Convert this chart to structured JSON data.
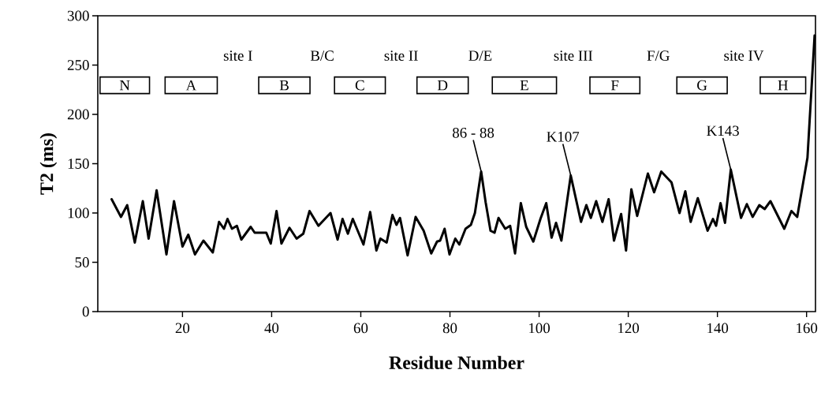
{
  "chart_data": {
    "type": "line",
    "xlabel": "Residue Number",
    "ylabel": "T2 (ms)",
    "color": "#000000",
    "x": [
      4.1,
      6.2,
      7.6,
      9.3,
      11.1,
      12.4,
      14.2,
      16.4,
      18.1,
      20,
      21.3,
      22.8,
      24.7,
      26.8,
      28.2,
      29.3,
      30.1,
      31.1,
      32.2,
      33.2,
      35.3,
      36.2,
      38.8,
      39.8,
      41.1,
      42.2,
      44,
      45.6,
      47.1,
      48.5,
      50.5,
      53.2,
      54.8,
      55.9,
      57.1,
      58.2,
      60.6,
      62.1,
      63.5,
      64.4,
      65.8,
      67.1,
      68,
      68.8,
      70.5,
      72.3,
      74.1,
      75.8,
      77.1,
      77.8,
      78.8,
      79.9,
      81.2,
      82.1,
      83.5,
      84.7,
      85.6,
      87,
      88,
      89.1,
      90,
      90.9,
      92.4,
      93.5,
      94.6,
      95.9,
      97.1,
      98.7,
      100.3,
      101.6,
      102.8,
      103.8,
      105,
      107.1,
      109.4,
      110.6,
      111.6,
      112.8,
      114.2,
      115.6,
      116.8,
      118.4,
      119.5,
      120.7,
      122,
      124.4,
      125.8,
      127.4,
      129.7,
      131.5,
      132.8,
      134,
      135.6,
      137.8,
      139,
      139.7,
      140.7,
      141.7,
      143,
      145.3,
      146.6,
      147.9,
      149.4,
      150.6,
      151.9,
      155,
      156.6,
      157.9,
      160.2,
      161.8
    ],
    "values": [
      114,
      96,
      108,
      70,
      112,
      74,
      123,
      58,
      112,
      66,
      78,
      58,
      72,
      60,
      91,
      84,
      94,
      84,
      87,
      73,
      86,
      80,
      80,
      69,
      102,
      69,
      85,
      74,
      79,
      102,
      87,
      100,
      73,
      94,
      79,
      94,
      68,
      101,
      62,
      74,
      70,
      98,
      88,
      95,
      57,
      96,
      82,
      59,
      71,
      72,
      84,
      58,
      74,
      68,
      84,
      88,
      100,
      142,
      111,
      82,
      80,
      95,
      84,
      87,
      59,
      110,
      86,
      71,
      94,
      110,
      75,
      90,
      72,
      138,
      91,
      108,
      95,
      112,
      91,
      114,
      72,
      99,
      62,
      124,
      97,
      140,
      121,
      142,
      131,
      100,
      122,
      91,
      115,
      82,
      94,
      87,
      110,
      90,
      144,
      95,
      109,
      96,
      108,
      104,
      112,
      84,
      102,
      96,
      156,
      280
    ],
    "xlim": [
      1,
      162
    ],
    "ylim": [
      0,
      300
    ],
    "xticks": [
      20,
      40,
      60,
      80,
      100,
      120,
      140,
      160
    ],
    "yticks": [
      0,
      50,
      100,
      150,
      200,
      250,
      300
    ],
    "bands": [
      {
        "axis": "x",
        "from": 1.5,
        "to": 12.6,
        "label": "N"
      },
      {
        "axis": "x",
        "from": 16.1,
        "to": 27.8,
        "label": "A"
      },
      {
        "axis": "x",
        "from": 37.1,
        "to": 48.6,
        "label": "B"
      },
      {
        "axis": "x",
        "from": 54.1,
        "to": 65.5,
        "label": "C"
      },
      {
        "axis": "x",
        "from": 72.6,
        "to": 84.1,
        "label": "D"
      },
      {
        "axis": "x",
        "from": 89.5,
        "to": 103.9,
        "label": "E"
      },
      {
        "axis": "x",
        "from": 111.4,
        "to": 122.6,
        "label": "F"
      },
      {
        "axis": "x",
        "from": 130.9,
        "to": 142.2,
        "label": "G"
      },
      {
        "axis": "x",
        "from": 149.6,
        "to": 159.8,
        "label": "H"
      }
    ],
    "annotations": [
      "site I",
      "B/C",
      "site II",
      "D/E",
      "site III",
      "F/G",
      "site IV",
      {
        "text": "86 - 88",
        "x": 87,
        "y": 142
      },
      {
        "text": "K107",
        "x": 107.1,
        "y": 138
      },
      {
        "text": "K143",
        "x": 143,
        "y": 144
      }
    ]
  }
}
